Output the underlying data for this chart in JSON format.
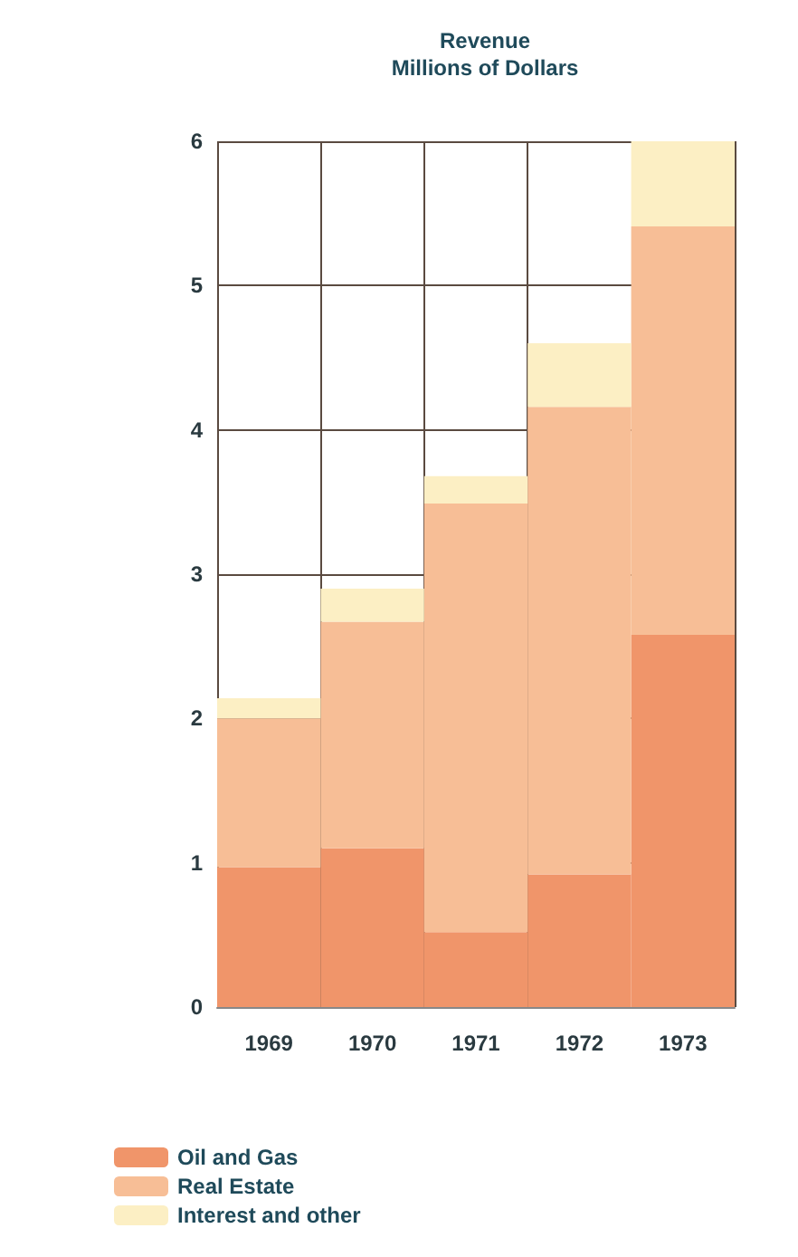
{
  "chart_data": {
    "type": "bar",
    "title": "Revenue\nMillions of Dollars",
    "categories": [
      "1969",
      "1970",
      "1971",
      "1972",
      "1973"
    ],
    "stacked": true,
    "series": [
      {
        "name": "Oil and Gas",
        "color": "#f0956a",
        "values": [
          0.97,
          1.1,
          0.52,
          0.92,
          2.58
        ]
      },
      {
        "name": "Real Estate",
        "color": "#f7be96",
        "values": [
          1.03,
          1.57,
          2.97,
          3.24,
          2.83
        ]
      },
      {
        "name": "Interest and other",
        "color": "#fcefc4",
        "values": [
          0.14,
          0.23,
          0.19,
          0.44,
          0.59
        ]
      }
    ],
    "ylim": [
      0,
      6
    ],
    "yticks": [
      0,
      1,
      2,
      3,
      4,
      5,
      6
    ],
    "grid": true,
    "legend": "bottom left"
  }
}
